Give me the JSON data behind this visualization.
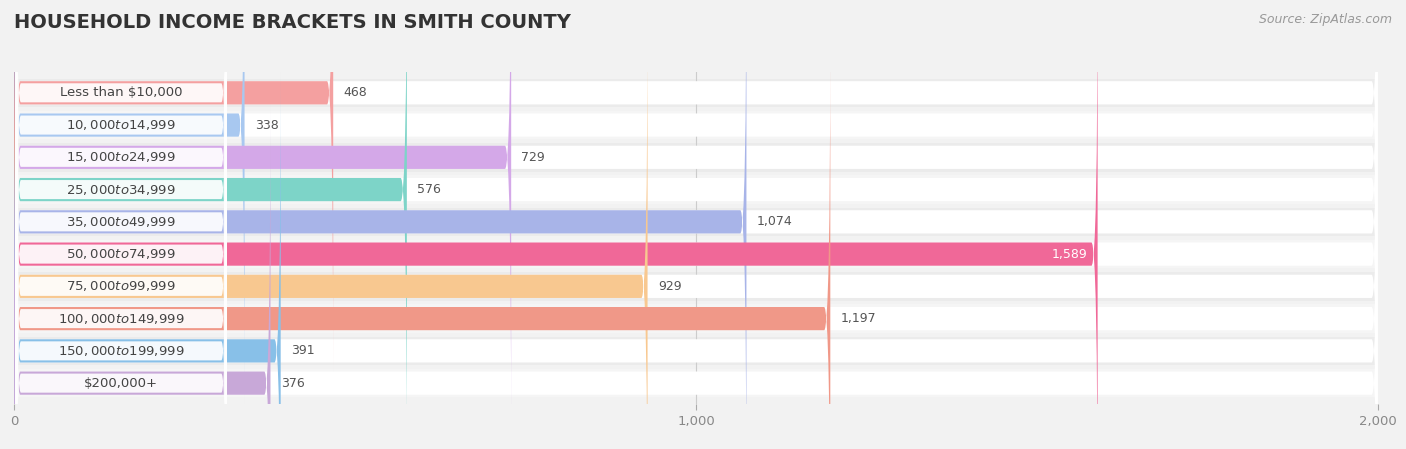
{
  "title": "HOUSEHOLD INCOME BRACKETS IN SMITH COUNTY",
  "source": "Source: ZipAtlas.com",
  "categories": [
    "Less than $10,000",
    "$10,000 to $14,999",
    "$15,000 to $24,999",
    "$25,000 to $34,999",
    "$35,000 to $49,999",
    "$50,000 to $74,999",
    "$75,000 to $99,999",
    "$100,000 to $149,999",
    "$150,000 to $199,999",
    "$200,000+"
  ],
  "values": [
    468,
    338,
    729,
    576,
    1074,
    1589,
    929,
    1197,
    391,
    376
  ],
  "bar_colors": [
    "#F4A0A0",
    "#A8C8F0",
    "#D4A8E8",
    "#7DD4C8",
    "#A8B4E8",
    "#F06898",
    "#F8C890",
    "#F09888",
    "#88C0E8",
    "#C8A8D8"
  ],
  "background_color": "#f2f2f2",
  "bar_background_color": "#ffffff",
  "xlim": [
    0,
    2000
  ],
  "xticks": [
    0,
    1000,
    2000
  ],
  "title_fontsize": 14,
  "label_fontsize": 9.5,
  "value_fontsize": 9,
  "source_fontsize": 9
}
